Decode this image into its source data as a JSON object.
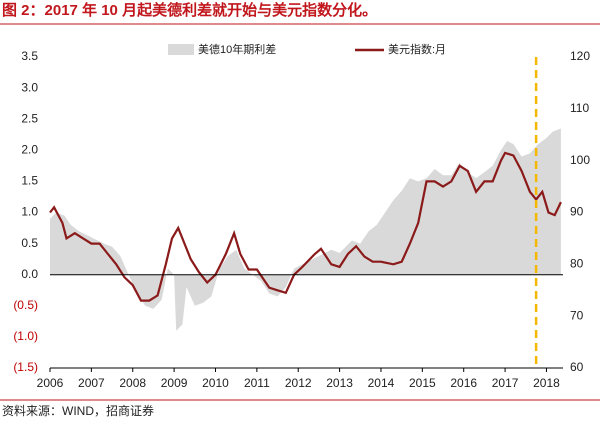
{
  "chart_data": {
    "type": "area-line",
    "title": "图 2：2017 年 10 月起美德利差就开始与美元指数分化。",
    "source": "资料来源：WIND，招商证券",
    "xlim": [
      2006,
      2018.4
    ],
    "xticks": [
      2006,
      2007,
      2008,
      2009,
      2010,
      2011,
      2012,
      2013,
      2014,
      2015,
      2016,
      2017,
      2018
    ],
    "ylim": [
      -1.5,
      3.5
    ],
    "yticks": [
      {
        "value": 3.5,
        "label": "3.5"
      },
      {
        "value": 3,
        "label": "3.0"
      },
      {
        "value": 2.5,
        "label": "2.5"
      },
      {
        "value": 2,
        "label": "2.0"
      },
      {
        "value": 1.5,
        "label": "1.5"
      },
      {
        "value": 1,
        "label": "1.0"
      },
      {
        "value": 0.5,
        "label": "0.5"
      },
      {
        "value": 0,
        "label": "0.0"
      },
      {
        "value": -0.5,
        "label": "(0.5)"
      },
      {
        "value": -1,
        "label": "(1.0)"
      },
      {
        "value": -1.5,
        "label": "(1.5)"
      }
    ],
    "y2lim": [
      60,
      120
    ],
    "y2ticks": [
      60,
      70,
      80,
      90,
      100,
      110,
      120
    ],
    "vline": {
      "x": 2017.75,
      "color": "#f5b800"
    },
    "series": [
      {
        "name": "美德10年期利差",
        "kind": "area",
        "color": "#d9d9d9",
        "x": [
          2006.0,
          2006.15,
          2006.35,
          2006.5,
          2006.7,
          2007.0,
          2007.3,
          2007.5,
          2007.7,
          2007.9,
          2008.1,
          2008.3,
          2008.5,
          2008.7,
          2008.85,
          2009.0,
          2009.05,
          2009.2,
          2009.3,
          2009.5,
          2009.7,
          2009.9,
          2010.1,
          2010.3,
          2010.5,
          2010.7,
          2010.9,
          2011.1,
          2011.3,
          2011.5,
          2011.7,
          2011.9,
          2012.2,
          2012.5,
          2012.8,
          2013.0,
          2013.3,
          2013.5,
          2013.7,
          2013.9,
          2014.1,
          2014.3,
          2014.5,
          2014.7,
          2014.9,
          2015.1,
          2015.3,
          2015.5,
          2015.7,
          2015.9,
          2016.1,
          2016.3,
          2016.5,
          2016.7,
          2016.9,
          2017.05,
          2017.2,
          2017.4,
          2017.6,
          2017.8,
          2018.0,
          2018.15,
          2018.35
        ],
        "values": [
          0.9,
          1.0,
          0.95,
          0.8,
          0.7,
          0.6,
          0.5,
          0.45,
          0.3,
          0.0,
          -0.3,
          -0.5,
          -0.55,
          -0.4,
          0.1,
          0.0,
          -0.9,
          -0.8,
          -0.2,
          -0.5,
          -0.45,
          -0.35,
          0.1,
          0.3,
          0.4,
          0.1,
          0.0,
          -0.1,
          -0.3,
          -0.35,
          -0.2,
          0.1,
          0.2,
          0.3,
          0.4,
          0.35,
          0.55,
          0.5,
          0.7,
          0.8,
          1.0,
          1.2,
          1.35,
          1.55,
          1.5,
          1.55,
          1.7,
          1.6,
          1.6,
          1.8,
          1.65,
          1.55,
          1.65,
          1.75,
          2.0,
          2.15,
          2.1,
          1.9,
          1.95,
          2.1,
          2.2,
          2.3,
          2.35
        ]
      },
      {
        "name": "美元指数:月",
        "kind": "line",
        "axis": "y2",
        "color": "#8b1a1a",
        "x": [
          2006.0,
          2006.1,
          2006.3,
          2006.4,
          2006.6,
          2006.8,
          2007.0,
          2007.2,
          2007.4,
          2007.6,
          2007.8,
          2008.0,
          2008.2,
          2008.4,
          2008.6,
          2008.8,
          2008.95,
          2009.1,
          2009.2,
          2009.4,
          2009.6,
          2009.8,
          2010.0,
          2010.25,
          2010.45,
          2010.6,
          2010.8,
          2011.0,
          2011.3,
          2011.5,
          2011.7,
          2011.9,
          2012.1,
          2012.4,
          2012.55,
          2012.8,
          2013.0,
          2013.2,
          2013.4,
          2013.6,
          2013.8,
          2014.0,
          2014.3,
          2014.5,
          2014.7,
          2014.9,
          2015.1,
          2015.3,
          2015.5,
          2015.7,
          2015.9,
          2016.1,
          2016.3,
          2016.5,
          2016.7,
          2016.9,
          2017.0,
          2017.2,
          2017.4,
          2017.6,
          2017.75,
          2017.9,
          2018.05,
          2018.2,
          2018.35
        ],
        "values": [
          90,
          91,
          88,
          85,
          86,
          85,
          84,
          84,
          82,
          80,
          77.5,
          76,
          73,
          73,
          74,
          80,
          85,
          87,
          85,
          81,
          78.5,
          76.5,
          78,
          82,
          86,
          82,
          79,
          79,
          75.5,
          75,
          74.5,
          78,
          79.5,
          82,
          83,
          80,
          79.5,
          82,
          83.5,
          81.5,
          80.5,
          80.5,
          80,
          80.5,
          84,
          88,
          96,
          96,
          95,
          96,
          99,
          98,
          94,
          96,
          96,
          100,
          101.5,
          101,
          98,
          94,
          92.5,
          94,
          90,
          89.5,
          92
        ]
      }
    ]
  }
}
